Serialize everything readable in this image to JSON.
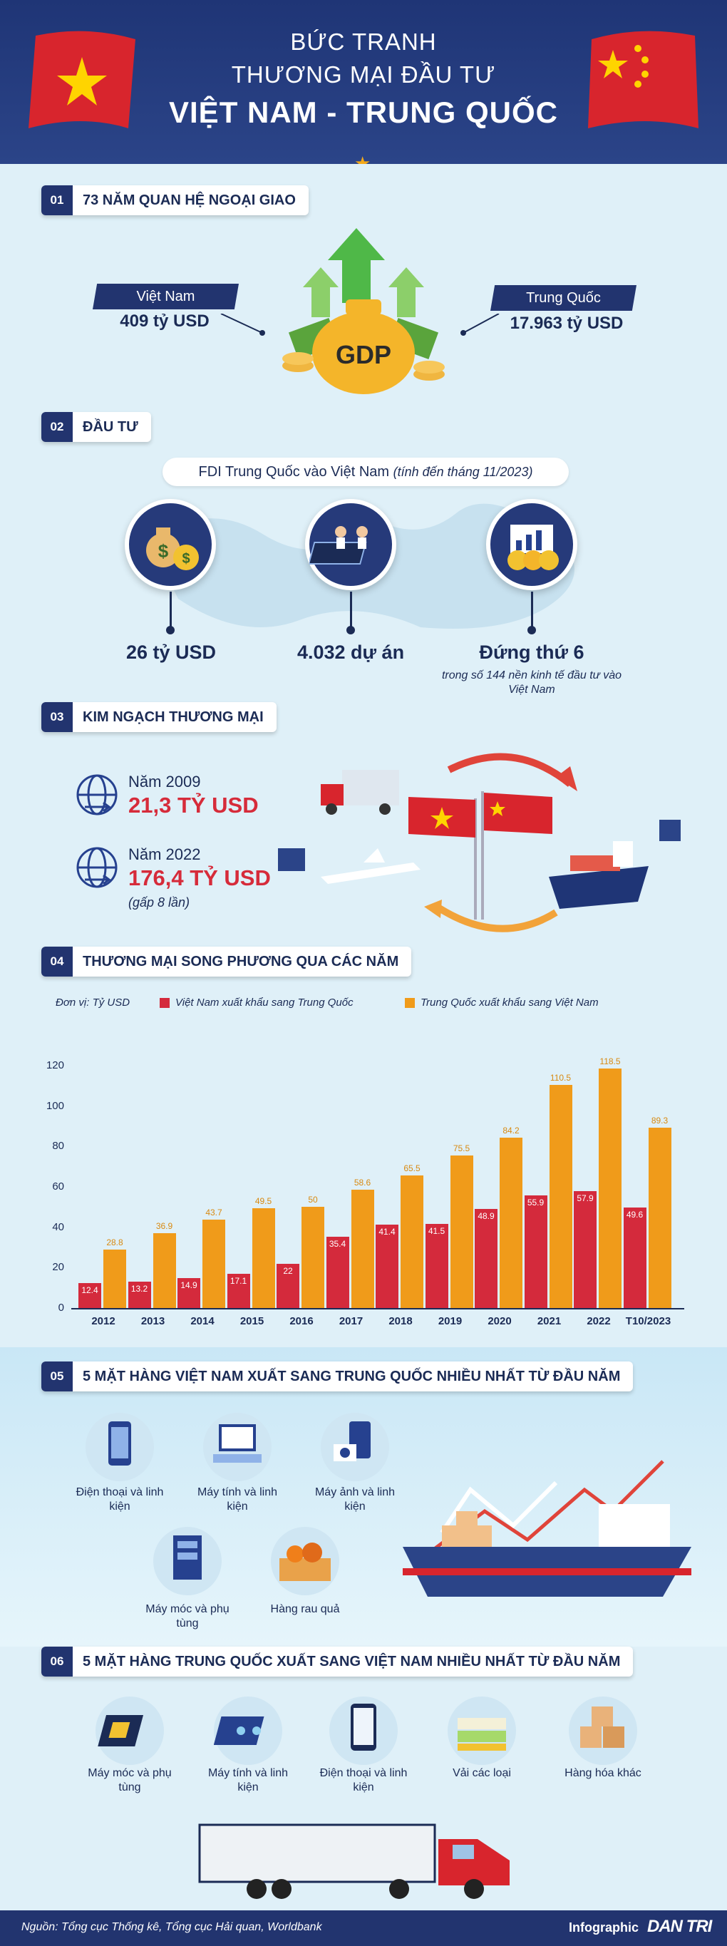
{
  "header": {
    "pre1": "BỨC TRANH",
    "pre2": "THƯƠNG MẠI ĐẦU TƯ",
    "main": "VIỆT NAM - TRUNG QUỐC"
  },
  "s1": {
    "num": "01",
    "title": "73 NĂM QUAN HỆ NGOẠI GIAO",
    "vn_label": "Việt Nam",
    "vn_value": "409 tỷ USD",
    "cn_label": "Trung Quốc",
    "cn_value": "17.963 tỷ USD",
    "gdp": "GDP"
  },
  "s2": {
    "num": "02",
    "title": "ĐẦU TƯ",
    "subtitle": "FDI Trung Quốc vào Việt Nam",
    "subtitle_note": "(tính đến tháng 11/2023)",
    "v1": "26 tỷ USD",
    "v2": "4.032 dự án",
    "v3": "Đứng thứ 6",
    "v3_sub": "trong số 144 nền kinh tế đầu tư vào Việt Nam"
  },
  "s3": {
    "num": "03",
    "title": "KIM NGẠCH THƯƠNG MẠI",
    "y1": "Năm 2009",
    "v1": "21,3 TỶ USD",
    "y2": "Năm 2022",
    "v2": "176,4 TỶ USD",
    "note": "(gấp 8 lần)"
  },
  "s4": {
    "num": "04",
    "title": "THƯƠNG MẠI SONG PHƯƠNG QUA CÁC NĂM",
    "unit": "Đơn vị: Tỷ USD",
    "legend_red": "Việt Nam xuất khẩu sang Trung Quốc",
    "legend_orange": "Trung Quốc xuất khẩu sang Việt Nam"
  },
  "chart_data": {
    "type": "bar",
    "categories": [
      "2012",
      "2013",
      "2014",
      "2015",
      "2016",
      "2017",
      "2018",
      "2019",
      "2020",
      "2021",
      "2022",
      "T10/2023"
    ],
    "series": [
      {
        "name": "Việt Nam xuất khẩu sang Trung Quốc",
        "color": "#d42a3c",
        "values": [
          12.4,
          13.2,
          14.9,
          17.1,
          22,
          35.4,
          41.4,
          41.5,
          48.9,
          55.9,
          57.9,
          49.6
        ]
      },
      {
        "name": "Trung Quốc xuất khẩu sang Việt Nam",
        "color": "#f09b1a",
        "values": [
          28.8,
          36.9,
          43.7,
          49.5,
          50,
          58.6,
          65.5,
          75.5,
          84.2,
          110.5,
          118.5,
          89.3
        ]
      }
    ],
    "yticks": [
      "0",
      "20",
      "40",
      "60",
      "80",
      "100",
      "120"
    ],
    "ylim": [
      0,
      120
    ]
  },
  "s5": {
    "num": "05",
    "title": "5 MẶT HÀNG VIỆT NAM XUẤT SANG TRUNG QUỐC NHIỀU NHẤT TỪ ĐẦU NĂM",
    "items": [
      "Điện thoại và linh kiện",
      "Máy tính và linh kiện",
      "Máy ảnh và linh kiện",
      "Máy móc và phụ tùng",
      "Hàng rau quả"
    ]
  },
  "s6": {
    "num": "06",
    "title": "5 MẶT HÀNG TRUNG QUỐC XUẤT SANG VIỆT NAM NHIỀU NHẤT TỪ ĐẦU NĂM",
    "items": [
      "Máy móc và phụ tùng",
      "Máy tính và linh kiện",
      "Điện thoại và linh kiện",
      "Vải các loại",
      "Hàng hóa khác"
    ]
  },
  "footer": {
    "source": "Nguồn: Tổng cục Thống kê, Tổng cục Hải quan, Worldbank",
    "brand_pre": "Infographic",
    "brand": "DAN TRI"
  }
}
